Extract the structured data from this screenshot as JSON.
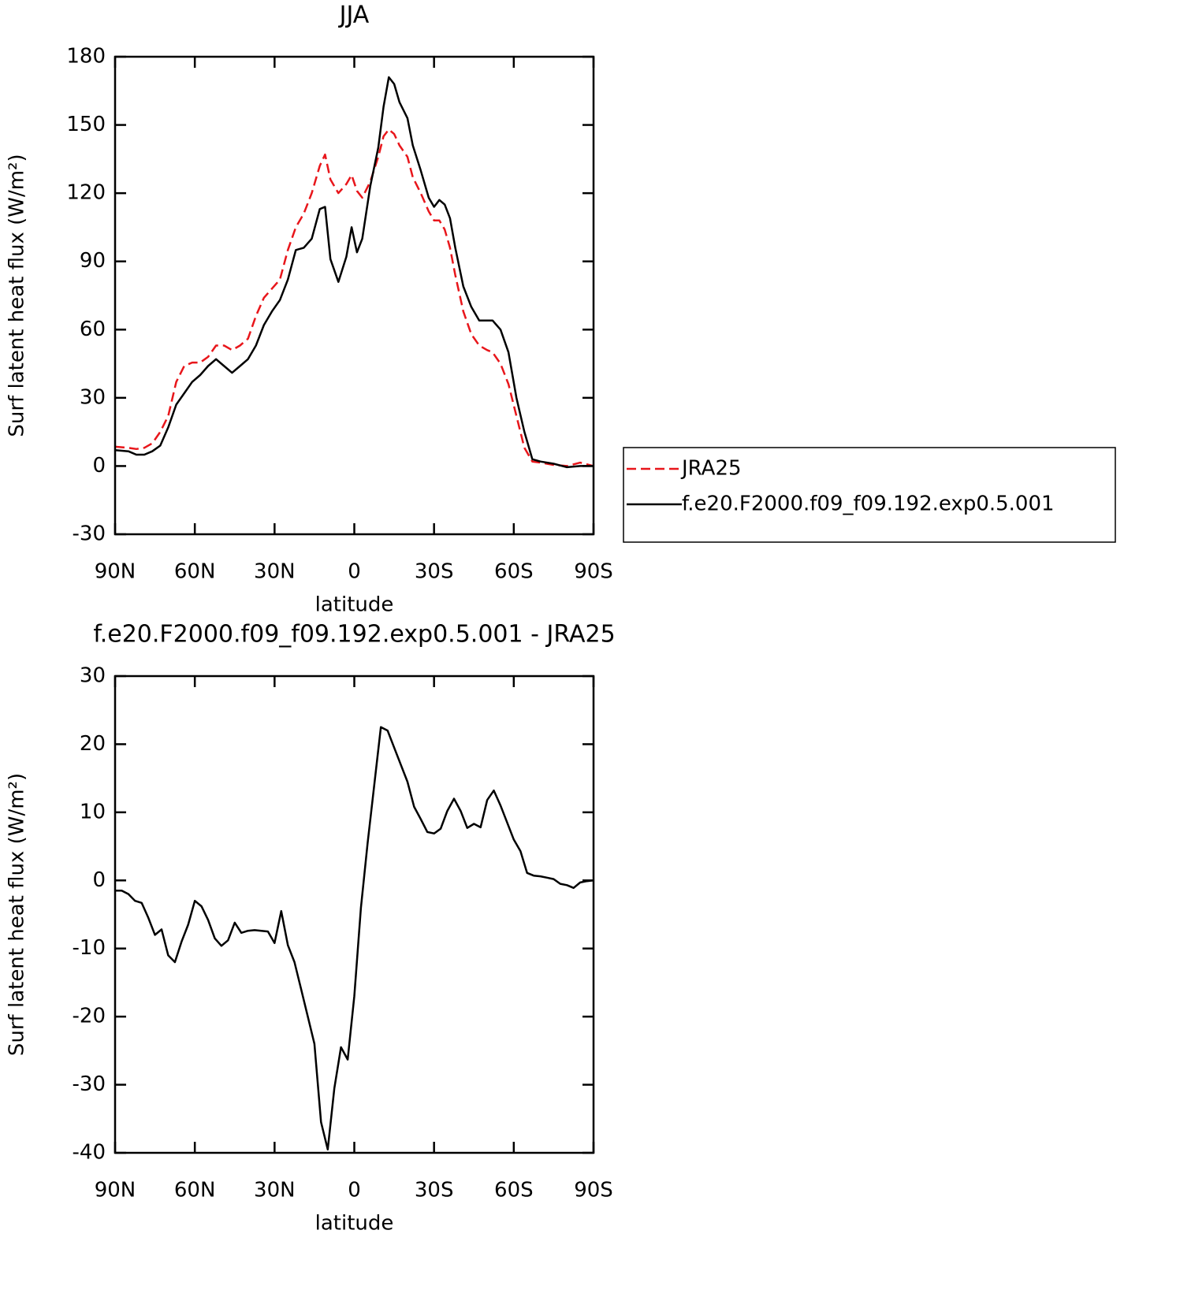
{
  "chart_data": [
    {
      "type": "line",
      "title": "JJA",
      "xlabel": "latitude",
      "ylabel": "Surf latent heat flux (W/m²)",
      "xlim": [
        90,
        -90
      ],
      "xticks": [
        {
          "value": 90,
          "label": "90N"
        },
        {
          "value": 60,
          "label": "60N"
        },
        {
          "value": 30,
          "label": "30N"
        },
        0,
        {
          "value": -30,
          "label": "30S"
        },
        {
          "value": -60,
          "label": "60S"
        },
        {
          "value": -90,
          "label": "90S"
        }
      ],
      "ylim": [
        -30,
        180
      ],
      "yticks": [
        -30,
        0,
        30,
        60,
        90,
        120,
        150,
        180
      ],
      "legend": "right",
      "x": [
        90,
        85,
        82,
        79,
        76,
        73,
        70,
        67,
        64,
        61,
        58,
        55,
        52,
        49,
        46,
        43,
        40,
        37,
        34,
        31,
        28,
        25,
        22,
        19,
        16,
        13,
        11,
        9,
        6,
        3,
        1,
        -1,
        -3,
        -6,
        -9,
        -11,
        -13,
        -15,
        -17,
        -20,
        -22,
        -25,
        -28,
        -30,
        -32,
        -34,
        -36,
        -38,
        -41,
        -44,
        -47,
        -50,
        -52,
        -55,
        -58,
        -61,
        -64,
        -67,
        -70,
        -75,
        -80,
        -85,
        -90
      ],
      "series": [
        {
          "name": "JRA25",
          "color": "#e8161b",
          "linestyle": "dashed",
          "values": [
            8.5,
            8,
            7.5,
            8,
            10,
            15,
            22,
            37,
            44,
            45.5,
            45.5,
            48,
            53,
            53,
            51,
            53,
            56,
            66,
            74,
            78,
            82,
            95,
            105,
            111,
            120,
            132,
            137,
            126,
            120,
            124,
            128,
            121,
            118,
            125,
            136,
            145,
            148,
            146,
            141,
            136,
            127,
            120,
            112,
            108,
            108,
            104,
            96,
            84,
            68,
            58,
            53,
            51,
            50,
            45,
            36,
            22,
            8,
            2,
            1.5,
            0.5,
            0,
            1.5,
            0
          ]
        },
        {
          "name": "f.e20.F2000.f09_f09.192.exp0.5.001",
          "color": "#000000",
          "linestyle": "solid",
          "values": [
            7,
            6.5,
            5,
            5,
            6.5,
            9,
            17,
            27,
            32,
            37,
            40,
            44,
            47,
            44,
            41,
            44,
            47,
            53,
            62,
            68,
            73,
            82,
            95,
            96,
            100,
            113,
            114,
            91,
            81,
            92,
            105,
            94,
            100,
            123,
            140,
            158,
            171,
            168,
            160,
            153,
            141,
            130,
            118,
            114,
            117,
            115,
            109,
            96,
            79,
            70,
            64,
            64,
            64,
            60,
            50,
            30,
            15,
            3,
            2,
            1,
            -0.5,
            0,
            0
          ]
        }
      ]
    },
    {
      "type": "line",
      "title": "f.e20.F2000.f09_f09.192.exp0.5.001 - JRA25",
      "xlabel": "latitude",
      "ylabel": "Surf latent heat flux (W/m²)",
      "xlim": [
        90,
        -90
      ],
      "xticks": [
        {
          "value": 90,
          "label": "90N"
        },
        {
          "value": 60,
          "label": "60N"
        },
        {
          "value": 30,
          "label": "30N"
        },
        0,
        {
          "value": -30,
          "label": "30S"
        },
        {
          "value": -60,
          "label": "60S"
        },
        {
          "value": -90,
          "label": "90S"
        }
      ],
      "ylim": [
        -40,
        30
      ],
      "yticks": [
        -40,
        -30,
        -20,
        -10,
        0,
        10,
        20,
        30
      ],
      "color": "#000000",
      "x": [
        90,
        87.5,
        85,
        82.5,
        80,
        77.5,
        75,
        72.5,
        70,
        67.5,
        65,
        62.5,
        60,
        57.5,
        55,
        52.5,
        50,
        47.5,
        45,
        42.5,
        40,
        37.5,
        35,
        32.5,
        30,
        27.5,
        25,
        22.5,
        20,
        17.5,
        15,
        12.5,
        10,
        7.5,
        5,
        2.5,
        0,
        -2.5,
        -5,
        -7.5,
        -10,
        -12.5,
        -15,
        -17.5,
        -20,
        -22.5,
        -25,
        -27.5,
        -30,
        -32.5,
        -35,
        -37.5,
        -40,
        -42.5,
        -45,
        -47.5,
        -50,
        -52.5,
        -55,
        -57.5,
        -60,
        -62.5,
        -65,
        -67.5,
        -70,
        -72.5,
        -75,
        -77.5,
        -80,
        -82.5,
        -85,
        -87.5,
        -90
      ],
      "values": [
        -1.5,
        -1.5,
        -2,
        -3,
        -3.3,
        -5.5,
        -8,
        -7.2,
        -11,
        -12,
        -9,
        -6.5,
        -3,
        -3.8,
        -5.8,
        -8.5,
        -9.6,
        -8.8,
        -6.2,
        -7.7,
        -7.4,
        -7.3,
        -7.4,
        -7.5,
        -9.2,
        -4.5,
        -9.5,
        -12,
        -16,
        -20,
        -24,
        -35.5,
        -39.5,
        -30.5,
        -24.5,
        -26.3,
        -17,
        -4,
        5.5,
        14,
        22.5,
        22,
        19.5,
        17,
        14.5,
        10.8,
        9,
        7.1,
        6.9,
        7.6,
        10.2,
        12,
        10.2,
        7.7,
        8.3,
        7.8,
        11.8,
        13.2,
        11,
        8.5,
        6,
        4.3,
        1.1,
        0.7,
        0.6,
        0.4,
        0.2,
        -0.5,
        -0.7,
        -1.1,
        -0.3,
        -0.1,
        0
      ]
    }
  ]
}
